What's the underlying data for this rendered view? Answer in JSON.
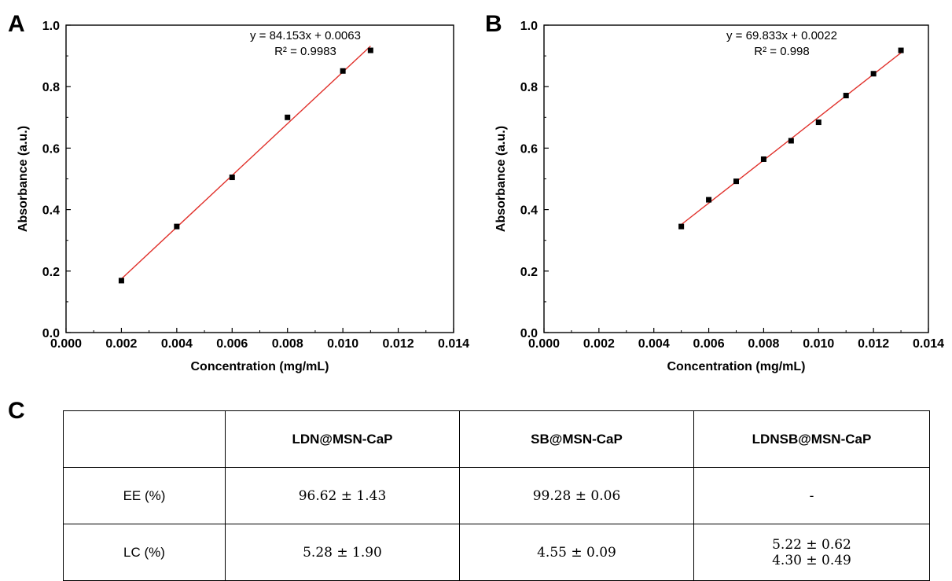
{
  "panels": {
    "a": "A",
    "b": "B",
    "c": "C"
  },
  "chart_data": [
    {
      "type": "scatter",
      "panel": "A",
      "xlabel": "Concentration (mg/mL)",
      "ylabel": "Absorbance (a.u.)",
      "xlim": [
        0,
        0.014
      ],
      "ylim": [
        0,
        1.0
      ],
      "x_ticks": [
        "0.000",
        "0.002",
        "0.004",
        "0.006",
        "0.008",
        "0.010",
        "0.012",
        "0.014"
      ],
      "y_ticks": [
        "0.0",
        "0.2",
        "0.4",
        "0.6",
        "0.8",
        "1.0"
      ],
      "points": [
        {
          "x": 0.002,
          "y": 0.169
        },
        {
          "x": 0.004,
          "y": 0.345
        },
        {
          "x": 0.006,
          "y": 0.505
        },
        {
          "x": 0.008,
          "y": 0.7
        },
        {
          "x": 0.01,
          "y": 0.851
        },
        {
          "x": 0.011,
          "y": 0.918
        }
      ],
      "fit": {
        "slope": 84.153,
        "intercept": 0.0063,
        "x_range": [
          0.002,
          0.011
        ]
      },
      "equation": "y = 84.153x + 0.0063",
      "r_squared": "R² = 0.9983",
      "marker_color": "#000000",
      "fit_color": "#e0302a"
    },
    {
      "type": "scatter",
      "panel": "B",
      "xlabel": "Concentration (mg/mL)",
      "ylabel": "Absorbance (a.u.)",
      "xlim": [
        0,
        0.014
      ],
      "ylim": [
        0,
        1.0
      ],
      "x_ticks": [
        "0.000",
        "0.002",
        "0.004",
        "0.006",
        "0.008",
        "0.010",
        "0.012",
        "0.014"
      ],
      "y_ticks": [
        "0.0",
        "0.2",
        "0.4",
        "0.6",
        "0.8",
        "1.0"
      ],
      "points": [
        {
          "x": 0.005,
          "y": 0.345
        },
        {
          "x": 0.006,
          "y": 0.432
        },
        {
          "x": 0.007,
          "y": 0.492
        },
        {
          "x": 0.008,
          "y": 0.564
        },
        {
          "x": 0.009,
          "y": 0.624
        },
        {
          "x": 0.01,
          "y": 0.684
        },
        {
          "x": 0.011,
          "y": 0.771
        },
        {
          "x": 0.012,
          "y": 0.842
        },
        {
          "x": 0.013,
          "y": 0.918
        }
      ],
      "fit": {
        "slope": 69.833,
        "intercept": 0.0022,
        "x_range": [
          0.005,
          0.013
        ]
      },
      "equation": "y = 69.833x + 0.0022",
      "r_squared": "R² = 0.998",
      "marker_color": "#000000",
      "fit_color": "#e0302a"
    }
  ],
  "table": {
    "headers": [
      "",
      "LDN@MSN-CaP",
      "SB@MSN-CaP",
      "LDNSB@MSN-CaP"
    ],
    "rows": [
      {
        "label": "EE (%)",
        "cells": [
          "96.62 ± 1.43",
          "99.28 ± 0.06",
          "-"
        ]
      },
      {
        "label": "LC (%)",
        "cells": [
          "5.28 ± 1.90",
          "4.55 ± 0.09",
          "5.22 ± 0.62"
        ],
        "extra": "4.30 ± 0.49"
      }
    ]
  }
}
